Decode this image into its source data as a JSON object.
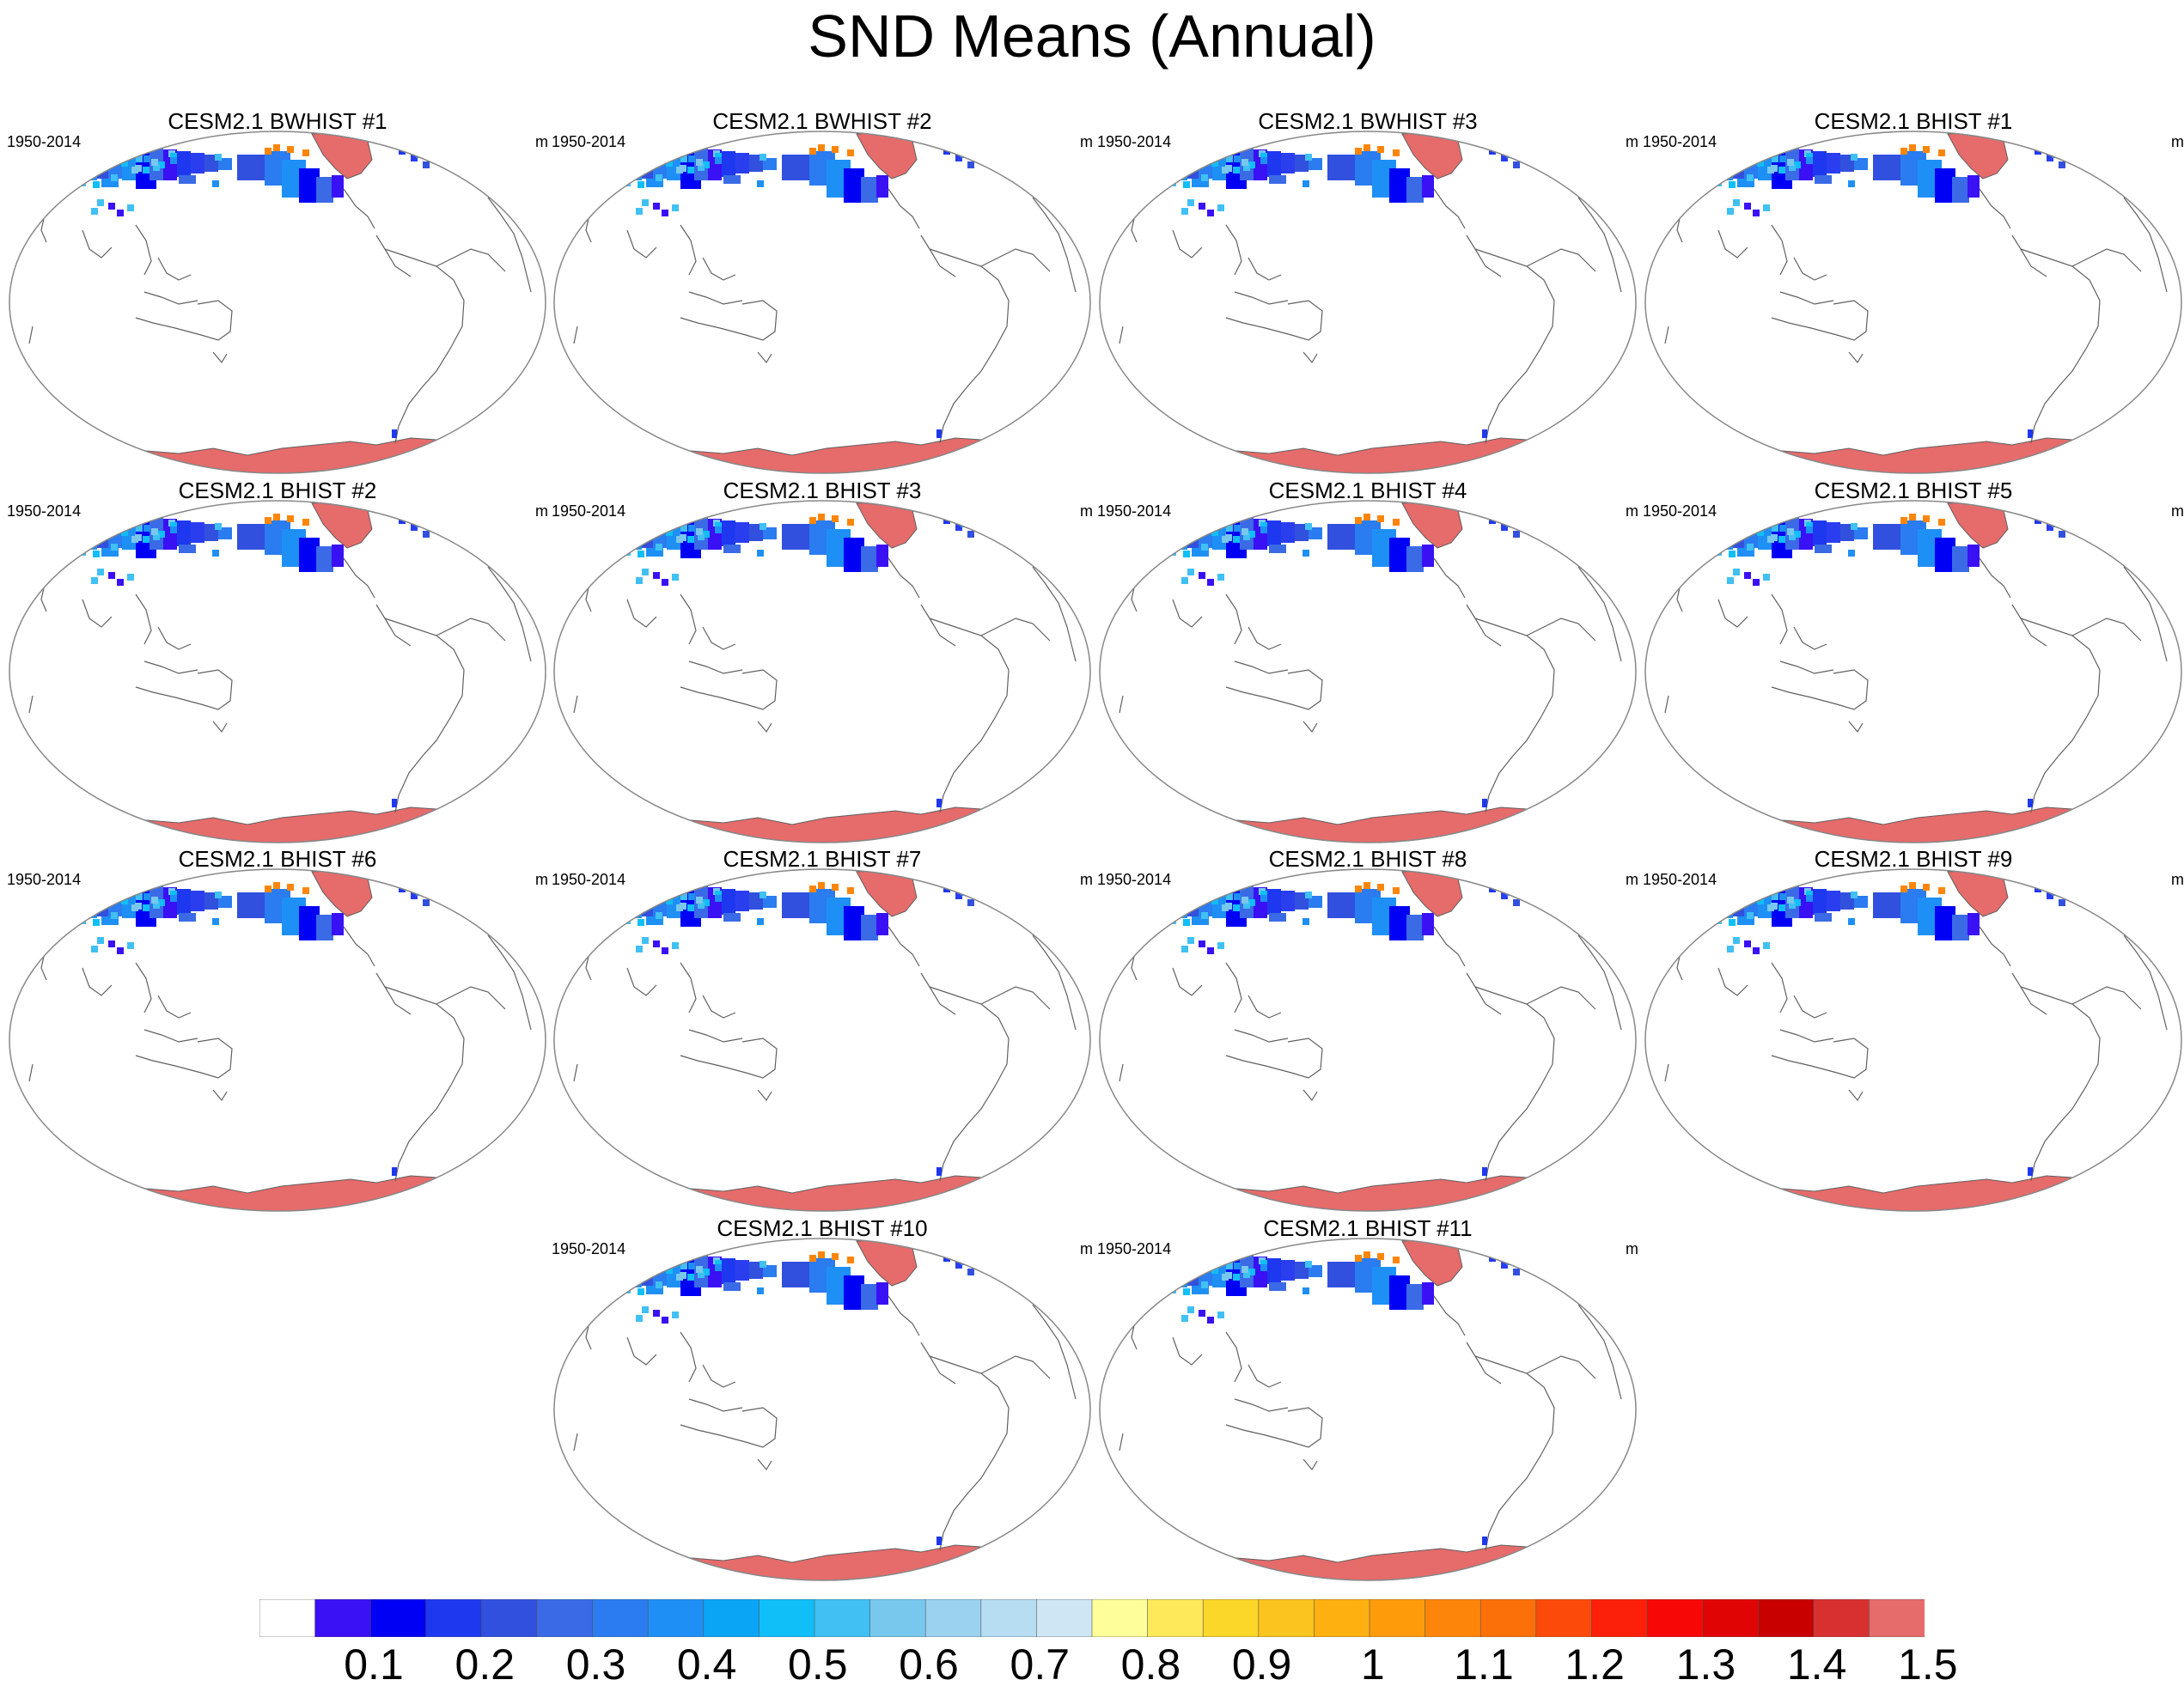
{
  "title": "SND Means (Annual)",
  "panels": [
    {
      "title": "CESM2.1 BWHIST #1",
      "period": "1950-2014",
      "units": "m"
    },
    {
      "title": "CESM2.1 BWHIST #2",
      "period": "1950-2014",
      "units": "m"
    },
    {
      "title": "CESM2.1 BWHIST #3",
      "period": "1950-2014",
      "units": "m"
    },
    {
      "title": "CESM2.1 BHIST #1",
      "period": "1950-2014",
      "units": "m"
    },
    {
      "title": "CESM2.1 BHIST #2",
      "period": "1950-2014",
      "units": "m"
    },
    {
      "title": "CESM2.1 BHIST #3",
      "period": "1950-2014",
      "units": "m"
    },
    {
      "title": "CESM2.1 BHIST #4",
      "period": "1950-2014",
      "units": "m"
    },
    {
      "title": "CESM2.1 BHIST #5",
      "period": "1950-2014",
      "units": "m"
    },
    {
      "title": "CESM2.1 BHIST #6",
      "period": "1950-2014",
      "units": "m"
    },
    {
      "title": "CESM2.1 BHIST #7",
      "period": "1950-2014",
      "units": "m"
    },
    {
      "title": "CESM2.1 BHIST #8",
      "period": "1950-2014",
      "units": "m"
    },
    {
      "title": "CESM2.1 BHIST #9",
      "period": "1950-2014",
      "units": "m"
    },
    {
      "title": "CESM2.1 BHIST #10",
      "period": "1950-2014",
      "units": "m"
    },
    {
      "title": "CESM2.1 BHIST #11",
      "period": "1950-2014",
      "units": "m"
    }
  ],
  "colorbar": {
    "labels": [
      "0.1",
      "0.2",
      "0.3",
      "0.4",
      "0.5",
      "0.6",
      "0.7",
      "0.8",
      "0.9",
      "1",
      "1.1",
      "1.2",
      "1.3",
      "1.4",
      "1.5"
    ],
    "colors": [
      "#ffffff",
      "#3a10f5",
      "#0000f5",
      "#1e38ef",
      "#3250de",
      "#3a6ae6",
      "#2a7cf0",
      "#1e90f5",
      "#0aa5f5",
      "#10bef8",
      "#40c0f3",
      "#78c8ee",
      "#9ad2f0",
      "#b6ddf2",
      "#cfe6f5",
      "#fefe9a",
      "#fde95a",
      "#fbd72a",
      "#fcc41e",
      "#fdb010",
      "#fd9b0a",
      "#fd860a",
      "#fc700a",
      "#fc4a0a",
      "#fc200a",
      "#f80707",
      "#e00404",
      "#c80000",
      "#d83030",
      "#e66b6b"
    ]
  },
  "map_colors": {
    "antarctica": "#e66b6b",
    "greenland": "#e66b6b",
    "coast": "#606060",
    "outline": "#888888"
  }
}
